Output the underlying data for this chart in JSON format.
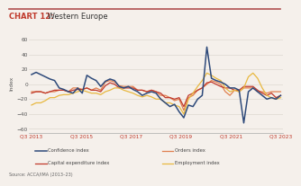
{
  "title_bold": "CHART 12:",
  "title_normal": " Western Europe",
  "ylabel": "Index",
  "source": "Source: ACCA/IMA (2013–23)",
  "background_color": "#f5f0eb",
  "x_labels": [
    "Q3 2013",
    "Q3 2015",
    "Q3 2017",
    "Q3 2019",
    "Q3 2021",
    "Q3 2023"
  ],
  "ylim": [
    -65,
    68
  ],
  "yticks": [
    -60,
    -40,
    -20,
    0,
    20,
    40,
    60
  ],
  "confidence": [
    13,
    16,
    13,
    10,
    7,
    5,
    -5,
    -7,
    -10,
    -12,
    -5,
    -12,
    12,
    8,
    5,
    -3,
    4,
    7,
    5,
    -3,
    -5,
    -3,
    -7,
    -10,
    -15,
    -12,
    -10,
    -12,
    -20,
    -25,
    -30,
    -27,
    -37,
    -45,
    -28,
    -30,
    -20,
    -15,
    50,
    8,
    5,
    3,
    0,
    -5,
    -5,
    -8,
    -52,
    -10,
    -5,
    -10,
    -15,
    -20,
    -18,
    -20,
    -15
  ],
  "orders": [
    -10,
    -10,
    -10,
    -12,
    -10,
    -10,
    -8,
    -8,
    -10,
    -5,
    -5,
    -7,
    -5,
    -8,
    -5,
    -8,
    3,
    5,
    3,
    -2,
    -3,
    -3,
    -3,
    -8,
    -8,
    -10,
    -8,
    -10,
    -15,
    -15,
    -18,
    -22,
    -20,
    -35,
    -18,
    -15,
    -8,
    -5,
    0,
    5,
    3,
    0,
    -10,
    -15,
    -8,
    -10,
    -5,
    -5,
    -5,
    -10,
    -10,
    -12,
    -10,
    -10,
    -10
  ],
  "capex": [
    -12,
    -10,
    -10,
    -12,
    -10,
    -8,
    -8,
    -8,
    -10,
    -8,
    -7,
    -7,
    -5,
    -8,
    -8,
    -10,
    -2,
    2,
    0,
    -5,
    -5,
    -5,
    -5,
    -8,
    -8,
    -10,
    -8,
    -10,
    -12,
    -18,
    -18,
    -20,
    -18,
    -30,
    -15,
    -12,
    -8,
    -5,
    2,
    3,
    0,
    -3,
    -5,
    -5,
    -8,
    -8,
    -3,
    -3,
    -3,
    -8,
    -12,
    -15,
    -12,
    -18,
    -15
  ],
  "employment": [
    -28,
    -25,
    -25,
    -22,
    -18,
    -18,
    -15,
    -14,
    -14,
    -12,
    -10,
    -8,
    -10,
    -12,
    -12,
    -14,
    -10,
    -8,
    -5,
    -5,
    -8,
    -10,
    -12,
    -15,
    -17,
    -15,
    -17,
    -20,
    -20,
    -25,
    -25,
    -28,
    -30,
    -40,
    -20,
    -12,
    -3,
    5,
    15,
    12,
    8,
    5,
    -5,
    -10,
    -8,
    -10,
    -5,
    10,
    15,
    8,
    -5,
    -15,
    -18,
    -20,
    -18
  ],
  "confidence_color": "#2e4a7a",
  "orders_color": "#e08050",
  "capex_color": "#c0392b",
  "employment_color": "#e8b840",
  "n_points": 55,
  "top_line_color": "#b5a0a0",
  "grid_color": "#ddd8d0"
}
